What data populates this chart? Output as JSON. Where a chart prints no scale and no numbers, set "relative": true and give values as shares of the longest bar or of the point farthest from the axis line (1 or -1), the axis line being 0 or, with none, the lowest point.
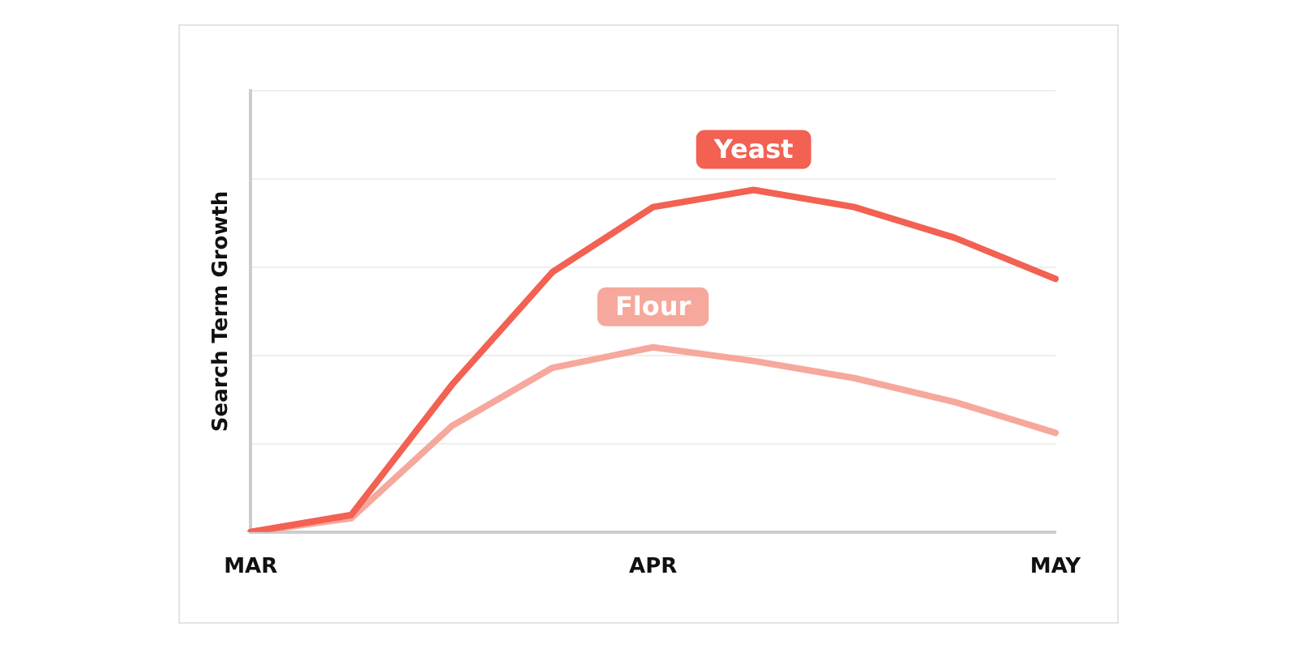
{
  "chart_data": {
    "type": "line",
    "relative": true,
    "ylabel": "Search Term Growth",
    "categories": [
      "MAR",
      null,
      null,
      null,
      "APR",
      null,
      null,
      null,
      "MAY"
    ],
    "series": [
      {
        "name": "Yeast",
        "color": "#f26152",
        "values": [
          0,
          0.05,
          0.43,
          0.76,
          0.95,
          1,
          0.95,
          0.86,
          0.74
        ]
      },
      {
        "name": "Flour",
        "color": "#f6a89c",
        "values": [
          0,
          0.04,
          0.31,
          0.48,
          0.54,
          0.5,
          0.45,
          0.38,
          0.29
        ]
      }
    ],
    "grid": "y",
    "legend": false,
    "marker": "none",
    "line_style": "solid"
  }
}
